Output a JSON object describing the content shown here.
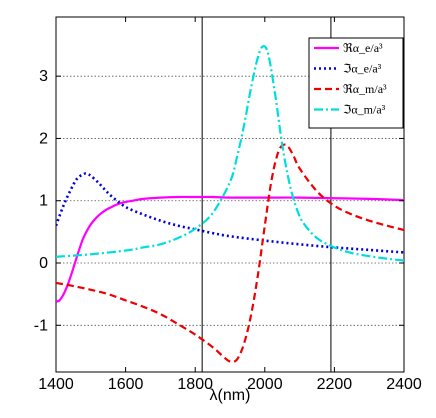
{
  "chart_data": {
    "type": "line",
    "title": "",
    "xlabel": "λ(nm)",
    "ylabel": "",
    "xlim": [
      1400,
      2400
    ],
    "ylim": [
      -1.75,
      3.95
    ],
    "xticks": [
      1400,
      1600,
      1800,
      2000,
      2200,
      2400
    ],
    "yticks": [
      -1,
      0,
      1,
      2,
      3
    ],
    "xtick_labels": [
      "1400",
      "1600",
      "1800",
      "2000",
      "2200",
      "2400"
    ],
    "ytick_labels": [
      "-1",
      "0",
      "1",
      "2",
      "3"
    ],
    "grid": "horizontal-dotted",
    "vertical_markers": [
      1820,
      2190
    ],
    "legend_position": "top-right",
    "series": [
      {
        "name": "ℜα_e/a³",
        "color": "#ff00ff",
        "dash": "solid",
        "x": [
          1400,
          1410,
          1420,
          1430,
          1440,
          1450,
          1460,
          1470,
          1480,
          1500,
          1520,
          1540,
          1560,
          1580,
          1600,
          1620,
          1650,
          1700,
          1750,
          1800,
          1850,
          1900,
          2000,
          2100,
          2200,
          2300,
          2400
        ],
        "y": [
          -0.62,
          -0.6,
          -0.52,
          -0.4,
          -0.25,
          -0.08,
          0.1,
          0.27,
          0.42,
          0.62,
          0.75,
          0.84,
          0.9,
          0.95,
          0.98,
          1.0,
          1.03,
          1.05,
          1.06,
          1.06,
          1.06,
          1.05,
          1.05,
          1.05,
          1.04,
          1.03,
          1.01
        ]
      },
      {
        "name": "ℑα_e/a³",
        "color": "#0000dd",
        "dash": "dotted",
        "x": [
          1400,
          1420,
          1440,
          1460,
          1480,
          1490,
          1500,
          1520,
          1540,
          1560,
          1600,
          1650,
          1700,
          1750,
          1800,
          1850,
          1900,
          2000,
          2100,
          2200,
          2300,
          2400
        ],
        "y": [
          0.6,
          0.9,
          1.15,
          1.35,
          1.43,
          1.43,
          1.4,
          1.3,
          1.18,
          1.07,
          0.9,
          0.78,
          0.68,
          0.6,
          0.54,
          0.48,
          0.43,
          0.36,
          0.3,
          0.25,
          0.21,
          0.17
        ]
      },
      {
        "name": "ℜα_m/a³",
        "color": "#ee0000",
        "dash": "dashed",
        "x": [
          1400,
          1450,
          1500,
          1550,
          1600,
          1650,
          1700,
          1750,
          1800,
          1850,
          1880,
          1900,
          1920,
          1940,
          1960,
          1980,
          2000,
          2020,
          2040,
          2060,
          2080,
          2100,
          2150,
          2200,
          2250,
          2300,
          2350,
          2400
        ],
        "y": [
          -0.32,
          -0.37,
          -0.43,
          -0.5,
          -0.6,
          -0.7,
          -0.82,
          -0.98,
          -1.15,
          -1.35,
          -1.5,
          -1.58,
          -1.55,
          -1.3,
          -0.85,
          -0.2,
          0.6,
          1.35,
          1.8,
          1.9,
          1.75,
          1.52,
          1.15,
          0.92,
          0.78,
          0.68,
          0.6,
          0.53
        ]
      },
      {
        "name": "ℑα_m/a³",
        "color": "#00dddd",
        "dash": "dashdot",
        "x": [
          1400,
          1500,
          1600,
          1650,
          1700,
          1750,
          1800,
          1850,
          1900,
          1920,
          1940,
          1960,
          1980,
          1995,
          2010,
          2030,
          2050,
          2070,
          2090,
          2110,
          2150,
          2200,
          2250,
          2300,
          2350,
          2400
        ],
        "y": [
          0.1,
          0.14,
          0.2,
          0.25,
          0.3,
          0.4,
          0.55,
          0.8,
          1.3,
          1.7,
          2.2,
          2.8,
          3.3,
          3.48,
          3.35,
          2.7,
          1.9,
          1.3,
          0.9,
          0.65,
          0.4,
          0.25,
          0.16,
          0.11,
          0.07,
          0.04
        ]
      }
    ]
  }
}
